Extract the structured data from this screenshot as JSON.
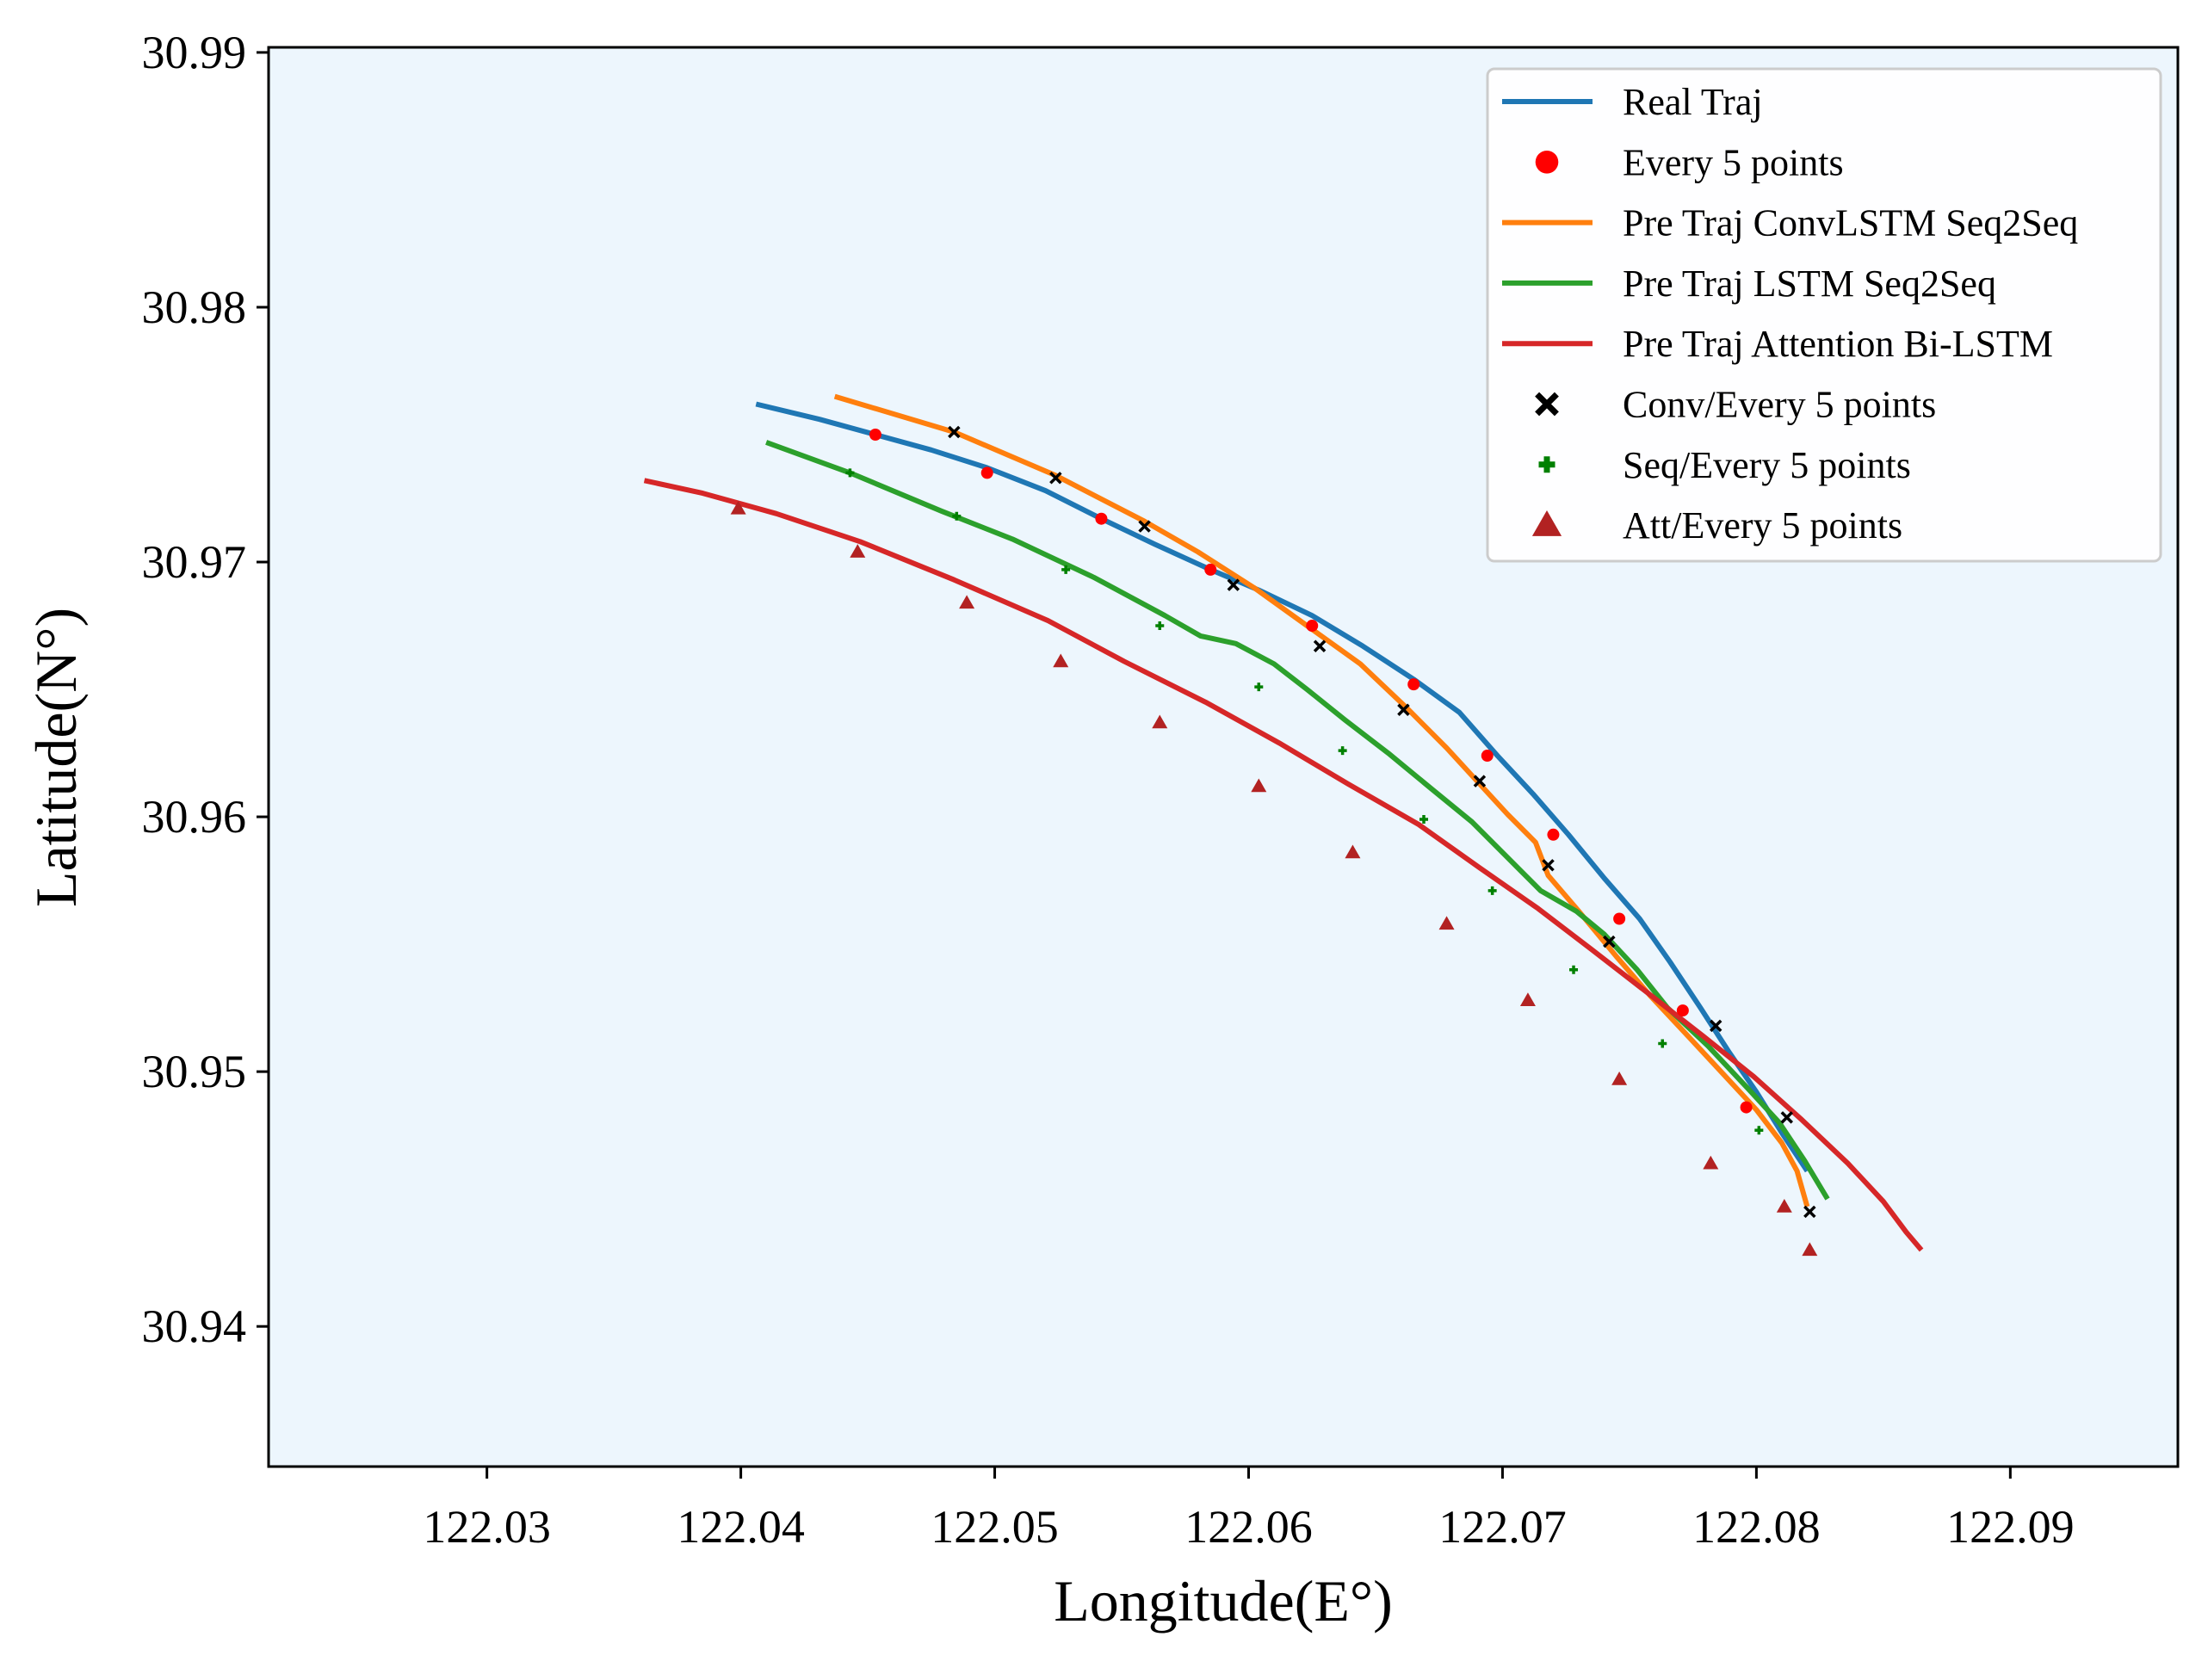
{
  "chart_data": {
    "type": "line",
    "title": "",
    "xlabel": "Longitude(E°)",
    "ylabel": "Latitude(N°)",
    "xlim": [
      122.0214,
      122.0966
    ],
    "ylim": [
      30.9345,
      30.9902
    ],
    "xticks": [
      122.03,
      122.04,
      122.05,
      122.06,
      122.07,
      122.08,
      122.09
    ],
    "xtick_labels": [
      "122.03",
      "122.04",
      "122.05",
      "122.06",
      "122.07",
      "122.08",
      "122.09"
    ],
    "yticks": [
      30.94,
      30.95,
      30.96,
      30.97,
      30.98,
      30.99
    ],
    "ytick_labels": [
      "30.94",
      "30.95",
      "30.96",
      "30.97",
      "30.98",
      "30.99"
    ],
    "grid": false,
    "background_color": "#edf6fd",
    "legend_position": "upper right",
    "legend_entries": [
      {
        "label": "Real Traj",
        "kind": "line",
        "color": "#1f77b4"
      },
      {
        "label": "Every 5 points",
        "kind": "circle",
        "color": "#ff0000"
      },
      {
        "label": "Pre Traj ConvLSTM Seq2Seq",
        "kind": "line",
        "color": "#ff7f0e"
      },
      {
        "label": "Pre Traj LSTM Seq2Seq",
        "kind": "line",
        "color": "#2ca02c"
      },
      {
        "label": "Pre Traj Attention Bi-LSTM",
        "kind": "line",
        "color": "#d62728"
      },
      {
        "label": "Conv/Every 5 points",
        "kind": "x",
        "color": "#000000"
      },
      {
        "label": "Seq/Every 5 points",
        "kind": "plus",
        "color": "#008000"
      },
      {
        "label": "Att/Every 5 points",
        "kind": "triangle",
        "color": "#b22222"
      }
    ],
    "series": [
      {
        "name": "Real Traj",
        "color": "#1f77b4",
        "points": [
          [
            122.0406,
            30.9762
          ],
          [
            122.0431,
            30.9756
          ],
          [
            122.0453,
            30.975
          ],
          [
            122.0475,
            30.9744
          ],
          [
            122.0497,
            30.9737
          ],
          [
            122.052,
            30.9728
          ],
          [
            122.0542,
            30.9717
          ],
          [
            122.0563,
            30.9707
          ],
          [
            122.0585,
            30.9697
          ],
          [
            122.0604,
            30.9689
          ],
          [
            122.0625,
            30.9679
          ],
          [
            122.0645,
            30.9667
          ],
          [
            122.0665,
            30.9654
          ],
          [
            122.0683,
            30.9641
          ],
          [
            122.0698,
            30.9624
          ],
          [
            122.0712,
            30.9609
          ],
          [
            122.0726,
            30.9593
          ],
          [
            122.074,
            30.9576
          ],
          [
            122.0754,
            30.956
          ],
          [
            122.0766,
            30.9543
          ],
          [
            122.0778,
            30.9525
          ],
          [
            122.0789,
            30.9508
          ],
          [
            122.08,
            30.9492
          ],
          [
            122.081,
            30.9476
          ],
          [
            122.082,
            30.9461
          ]
        ],
        "markers": {
          "label": "Every 5 points",
          "shape": "circle",
          "color": "#ff0000",
          "points": [
            [
              122.0453,
              30.975
            ],
            [
              122.0497,
              30.9735
            ],
            [
              122.0542,
              30.9717
            ],
            [
              122.0585,
              30.9697
            ],
            [
              122.0625,
              30.9675
            ],
            [
              122.0665,
              30.9652
            ],
            [
              122.0694,
              30.9624
            ],
            [
              122.072,
              30.9593
            ],
            [
              122.0746,
              30.956
            ],
            [
              122.0771,
              30.9524
            ],
            [
              122.0796,
              30.9486
            ]
          ]
        }
      },
      {
        "name": "Pre Traj ConvLSTM Seq2Seq",
        "color": "#ff7f0e",
        "points": [
          [
            122.0437,
            30.9765
          ],
          [
            122.0484,
            30.9751
          ],
          [
            122.0524,
            30.9734
          ],
          [
            122.0559,
            30.9716
          ],
          [
            122.058,
            30.9704
          ],
          [
            122.0602,
            30.969
          ],
          [
            122.0623,
            30.9675
          ],
          [
            122.0644,
            30.966
          ],
          [
            122.0662,
            30.9643
          ],
          [
            122.0678,
            30.9627
          ],
          [
            122.069,
            30.9614
          ],
          [
            122.0702,
            30.9601
          ],
          [
            122.0713,
            30.959
          ],
          [
            122.0718,
            30.9577
          ],
          [
            122.073,
            30.9563
          ],
          [
            122.0745,
            30.9545
          ],
          [
            122.0758,
            30.953
          ],
          [
            122.0773,
            30.9514
          ],
          [
            122.0787,
            30.9499
          ],
          [
            122.08,
            30.9485
          ],
          [
            122.081,
            30.9472
          ],
          [
            122.0816,
            30.9461
          ],
          [
            122.082,
            30.9447
          ]
        ],
        "markers": {
          "label": "Conv/Every 5 points",
          "shape": "x",
          "color": "#000000",
          "points": [
            [
              122.0484,
              30.9751
            ],
            [
              122.0524,
              30.9733
            ],
            [
              122.0559,
              30.9714
            ],
            [
              122.0594,
              30.9691
            ],
            [
              122.0628,
              30.9667
            ],
            [
              122.0661,
              30.9642
            ],
            [
              122.0691,
              30.9614
            ],
            [
              122.0718,
              30.9581
            ],
            [
              122.0742,
              30.9551
            ],
            [
              122.0784,
              30.9518
            ],
            [
              122.0812,
              30.9482
            ],
            [
              122.0821,
              30.9445
            ]
          ]
        }
      },
      {
        "name": "Pre Traj LSTM Seq2Seq",
        "color": "#2ca02c",
        "points": [
          [
            122.041,
            30.9747
          ],
          [
            122.0443,
            30.9735
          ],
          [
            122.0479,
            30.972
          ],
          [
            122.0507,
            30.9709
          ],
          [
            122.0539,
            30.9694
          ],
          [
            122.0567,
            30.9679
          ],
          [
            122.0581,
            30.9671
          ],
          [
            122.0595,
            30.9668
          ],
          [
            122.061,
            30.966
          ],
          [
            122.0623,
            30.965
          ],
          [
            122.0638,
            30.9638
          ],
          [
            122.0655,
            30.9625
          ],
          [
            122.0672,
            30.9611
          ],
          [
            122.0688,
            30.9598
          ],
          [
            122.0702,
            30.9584
          ],
          [
            122.0715,
            30.9571
          ],
          [
            122.0729,
            30.9563
          ],
          [
            122.074,
            30.9554
          ],
          [
            122.0753,
            30.954
          ],
          [
            122.0765,
            30.9525
          ],
          [
            122.0781,
            30.951
          ],
          [
            122.0797,
            30.9493
          ],
          [
            122.0809,
            30.948
          ],
          [
            122.0819,
            30.9465
          ],
          [
            122.0828,
            30.945
          ]
        ],
        "markers": {
          "label": "Seq/Every 5 points",
          "shape": "plus",
          "color": "#008000",
          "points": [
            [
              122.0443,
              30.9735
            ],
            [
              122.0485,
              30.9718
            ],
            [
              122.0528,
              30.9697
            ],
            [
              122.0565,
              30.9675
            ],
            [
              122.0604,
              30.9651
            ],
            [
              122.0637,
              30.9626
            ],
            [
              122.0669,
              30.9599
            ],
            [
              122.0696,
              30.9571
            ],
            [
              122.0728,
              30.954
            ],
            [
              122.0763,
              30.9511
            ],
            [
              122.0801,
              30.9477
            ]
          ]
        }
      },
      {
        "name": "Pre Traj Attention Bi-LSTM",
        "color": "#d62728",
        "points": [
          [
            122.0362,
            30.9732
          ],
          [
            122.0385,
            30.9727
          ],
          [
            122.0414,
            30.9719
          ],
          [
            122.0447,
            30.9708
          ],
          [
            122.0484,
            30.9693
          ],
          [
            122.0521,
            30.9677
          ],
          [
            122.0551,
            30.9661
          ],
          [
            122.0583,
            30.9645
          ],
          [
            122.0612,
            30.9629
          ],
          [
            122.0639,
            30.9613
          ],
          [
            122.0667,
            30.9597
          ],
          [
            122.0691,
            30.958
          ],
          [
            122.0714,
            30.9564
          ],
          [
            122.0735,
            30.9548
          ],
          [
            122.0757,
            30.9531
          ],
          [
            122.0779,
            30.9514
          ],
          [
            122.0799,
            30.9498
          ],
          [
            122.0818,
            30.9481
          ],
          [
            122.0836,
            30.9464
          ],
          [
            122.085,
            30.9449
          ],
          [
            122.0859,
            30.9437
          ],
          [
            122.0865,
            30.943
          ]
        ],
        "markers": {
          "label": "Att/Every 5 points",
          "shape": "triangle",
          "color": "#b22222",
          "points": [
            [
              122.0399,
              30.9721
            ],
            [
              122.0446,
              30.9704
            ],
            [
              122.0489,
              30.9684
            ],
            [
              122.0526,
              30.9661
            ],
            [
              122.0565,
              30.9637
            ],
            [
              122.0604,
              30.9612
            ],
            [
              122.0641,
              30.9586
            ],
            [
              122.0678,
              30.9558
            ],
            [
              122.071,
              30.9528
            ],
            [
              122.0746,
              30.9497
            ],
            [
              122.0782,
              30.9464
            ],
            [
              122.0811,
              30.9447
            ],
            [
              122.0821,
              30.943
            ]
          ]
        }
      }
    ]
  }
}
